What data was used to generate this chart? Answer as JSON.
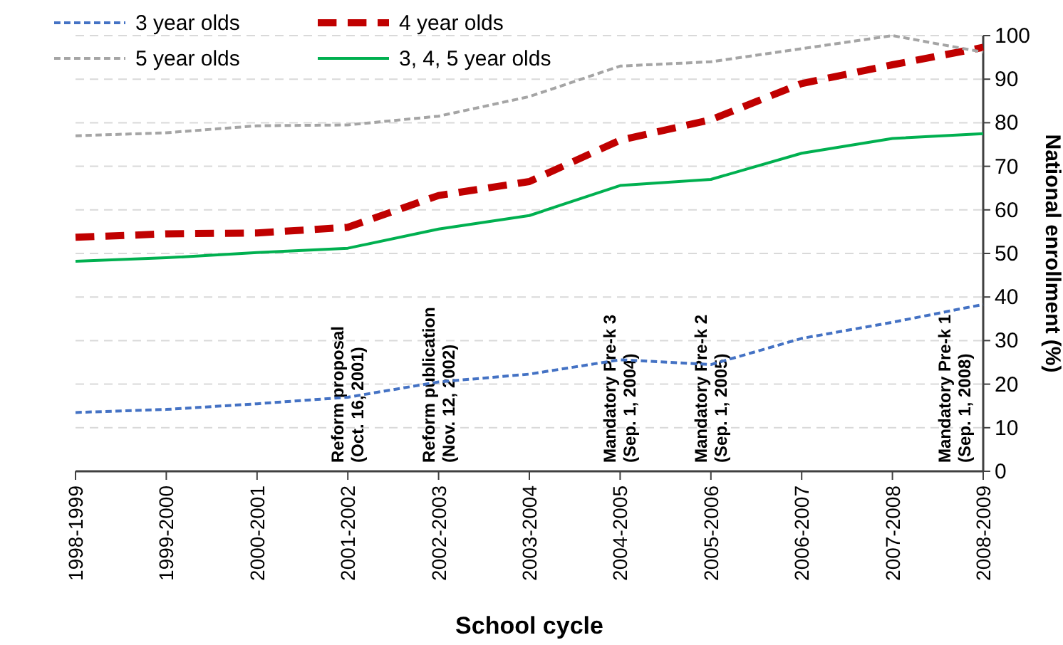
{
  "chart_data": {
    "type": "line",
    "xlabel": "School cycle",
    "ylabel": "National enrollment (%)",
    "categories": [
      "1998-1999",
      "1999-2000",
      "2000-2001",
      "2001-2002",
      "2002-2003",
      "2003-2004",
      "2004-2005",
      "2005-2006",
      "2006-2007",
      "2007-2008",
      "2008-2009"
    ],
    "series": [
      {
        "name": "3 year olds",
        "color": "#4472c4",
        "line_style": "dashed",
        "values": [
          13.5,
          14.2,
          15.5,
          17,
          20.5,
          22.3,
          25.6,
          24.5,
          30.5,
          34.2,
          38.3
        ]
      },
      {
        "name": "4 year olds",
        "color": "#c00000",
        "line_style": "dashed",
        "values": [
          53.7,
          54.5,
          54.7,
          56,
          63.3,
          66.5,
          76,
          80.7,
          89,
          93.3,
          97.3
        ]
      },
      {
        "name": "5 year olds",
        "color": "#a5a5a5",
        "line_style": "dashed",
        "values": [
          77,
          77.7,
          79.3,
          79.5,
          81.5,
          86,
          93,
          94,
          97,
          100,
          96.2
        ]
      },
      {
        "name": "3, 4, 5 year olds",
        "color": "#00b050",
        "line_style": "solid",
        "values": [
          48.2,
          49,
          50.2,
          51.2,
          55.6,
          58.7,
          65.6,
          67,
          73,
          76.4,
          77.5
        ]
      }
    ],
    "ylim": [
      0,
      100
    ],
    "yticks": [
      0,
      10,
      20,
      30,
      40,
      50,
      60,
      70,
      80,
      90,
      100
    ],
    "grid": "y",
    "legend": "top left",
    "marker": "none",
    "annotations": [
      "Reform proposal\n(Oct. 16, 2001)",
      "Reform publication\n(Nov. 12, 2002)",
      "Mandatory Pre-k 3\n(Sep. 1, 2004)",
      "Mandatory Pre-k 2\n(Sep. 1, 2005)",
      "Mandatory Pre-k 1\n(Sep. 1, 2008)"
    ]
  }
}
